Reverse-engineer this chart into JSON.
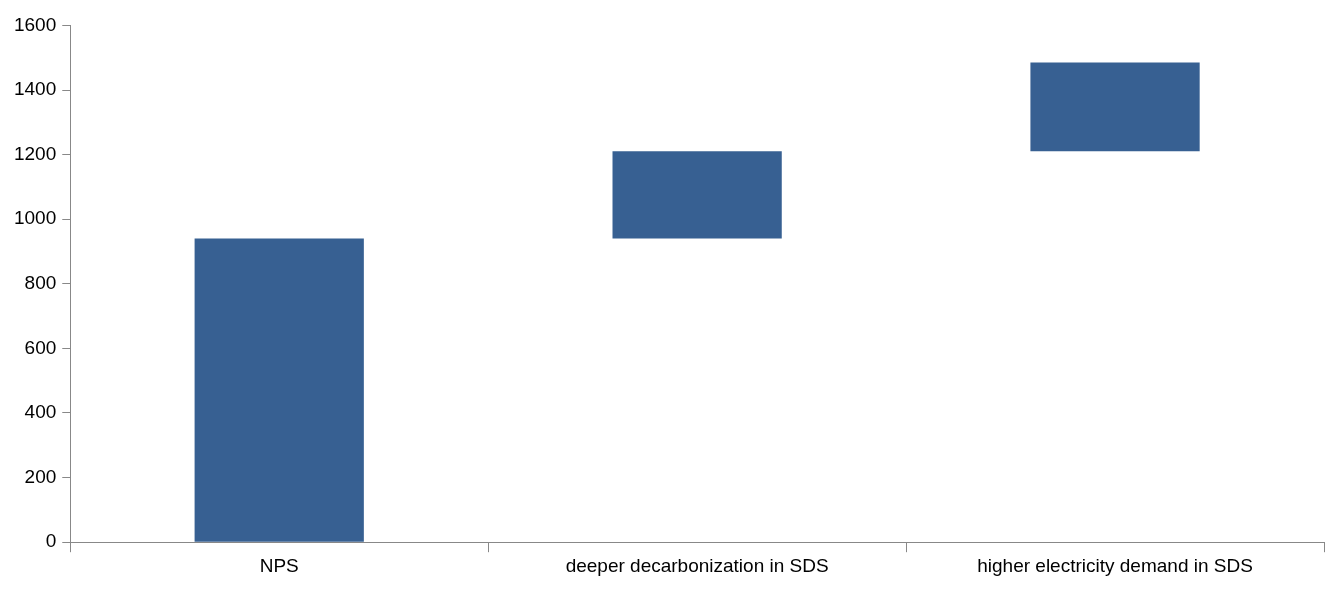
{
  "chart_data": {
    "type": "bar",
    "categories": [
      "NPS",
      "deeper decarbonization in SDS",
      "higher electricity demand in SDS"
    ],
    "values": [
      940,
      270,
      275
    ],
    "base": [
      0,
      940,
      1210
    ],
    "color": "#376092",
    "ylim": [
      0,
      1600
    ],
    "yticks": [
      0,
      200,
      400,
      600,
      800,
      1000,
      1200,
      1400,
      1600
    ],
    "grid": false,
    "legend": false
  }
}
